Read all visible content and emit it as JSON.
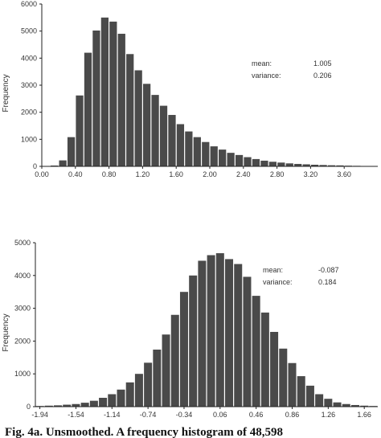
{
  "caption": "Fig. 4a. Unsmoothed. A frequency histogram of 48,598",
  "chart_data": [
    {
      "type": "bar",
      "ylabel": "Frequency",
      "ylim": [
        0,
        6000
      ],
      "xlim": [
        0.0,
        4.0
      ],
      "bin_width": 0.1,
      "xticks": [
        "0.00",
        "0.40",
        "0.80",
        "1.20",
        "1.60",
        "2.00",
        "2.40",
        "2.80",
        "3.20",
        "3.60"
      ],
      "yticks": [
        "0",
        "1000",
        "2000",
        "3000",
        "4000",
        "5000",
        "6000"
      ],
      "annotation": {
        "mean_label": "mean:",
        "mean_value": "1.005",
        "variance_label": "variance:",
        "variance_value": "0.206"
      },
      "x": [
        0.15,
        0.25,
        0.35,
        0.45,
        0.55,
        0.65,
        0.75,
        0.85,
        0.95,
        1.05,
        1.15,
        1.25,
        1.35,
        1.45,
        1.55,
        1.65,
        1.75,
        1.85,
        1.95,
        2.05,
        2.15,
        2.25,
        2.35,
        2.45,
        2.55,
        2.65,
        2.75,
        2.85,
        2.95,
        3.05,
        3.15,
        3.25,
        3.35,
        3.45,
        3.55,
        3.65,
        3.75,
        3.85,
        3.95
      ],
      "values": [
        30,
        220,
        1080,
        2620,
        4200,
        5020,
        5500,
        5350,
        4900,
        4150,
        3550,
        3050,
        2640,
        2240,
        1900,
        1560,
        1290,
        1080,
        900,
        740,
        620,
        500,
        420,
        340,
        270,
        210,
        170,
        140,
        110,
        90,
        75,
        60,
        50,
        40,
        35,
        25,
        20,
        15,
        10
      ]
    },
    {
      "type": "bar",
      "ylabel": "Frequency",
      "ylim": [
        0,
        5000
      ],
      "xlim": [
        -1.99,
        1.81
      ],
      "bin_width": 0.1,
      "xticks": [
        "-1.94",
        "-1.54",
        "-1.14",
        "-0.74",
        "-0.34",
        "0.06",
        "0.46",
        "0.86",
        "1.26",
        "1.66"
      ],
      "yticks": [
        "0",
        "1000",
        "2000",
        "3000",
        "4000",
        "5000"
      ],
      "annotation": {
        "mean_label": "mean:",
        "mean_value": "-0.087",
        "variance_label": "variance:",
        "variance_value": "0.184"
      },
      "x": [
        -1.94,
        -1.84,
        -1.74,
        -1.64,
        -1.54,
        -1.44,
        -1.34,
        -1.24,
        -1.14,
        -1.04,
        -0.94,
        -0.84,
        -0.74,
        -0.64,
        -0.54,
        -0.44,
        -0.34,
        -0.24,
        -0.14,
        -0.04,
        0.06,
        0.16,
        0.26,
        0.36,
        0.46,
        0.56,
        0.66,
        0.76,
        0.86,
        0.96,
        1.06,
        1.16,
        1.26,
        1.36,
        1.46,
        1.56,
        1.66,
        1.76
      ],
      "values": [
        20,
        30,
        40,
        60,
        80,
        120,
        180,
        270,
        380,
        520,
        740,
        1000,
        1340,
        1740,
        2200,
        2800,
        3500,
        4000,
        4450,
        4620,
        4680,
        4500,
        4350,
        3960,
        3380,
        2870,
        2280,
        1770,
        1330,
        930,
        640,
        380,
        240,
        130,
        80,
        50,
        30,
        20
      ]
    }
  ]
}
